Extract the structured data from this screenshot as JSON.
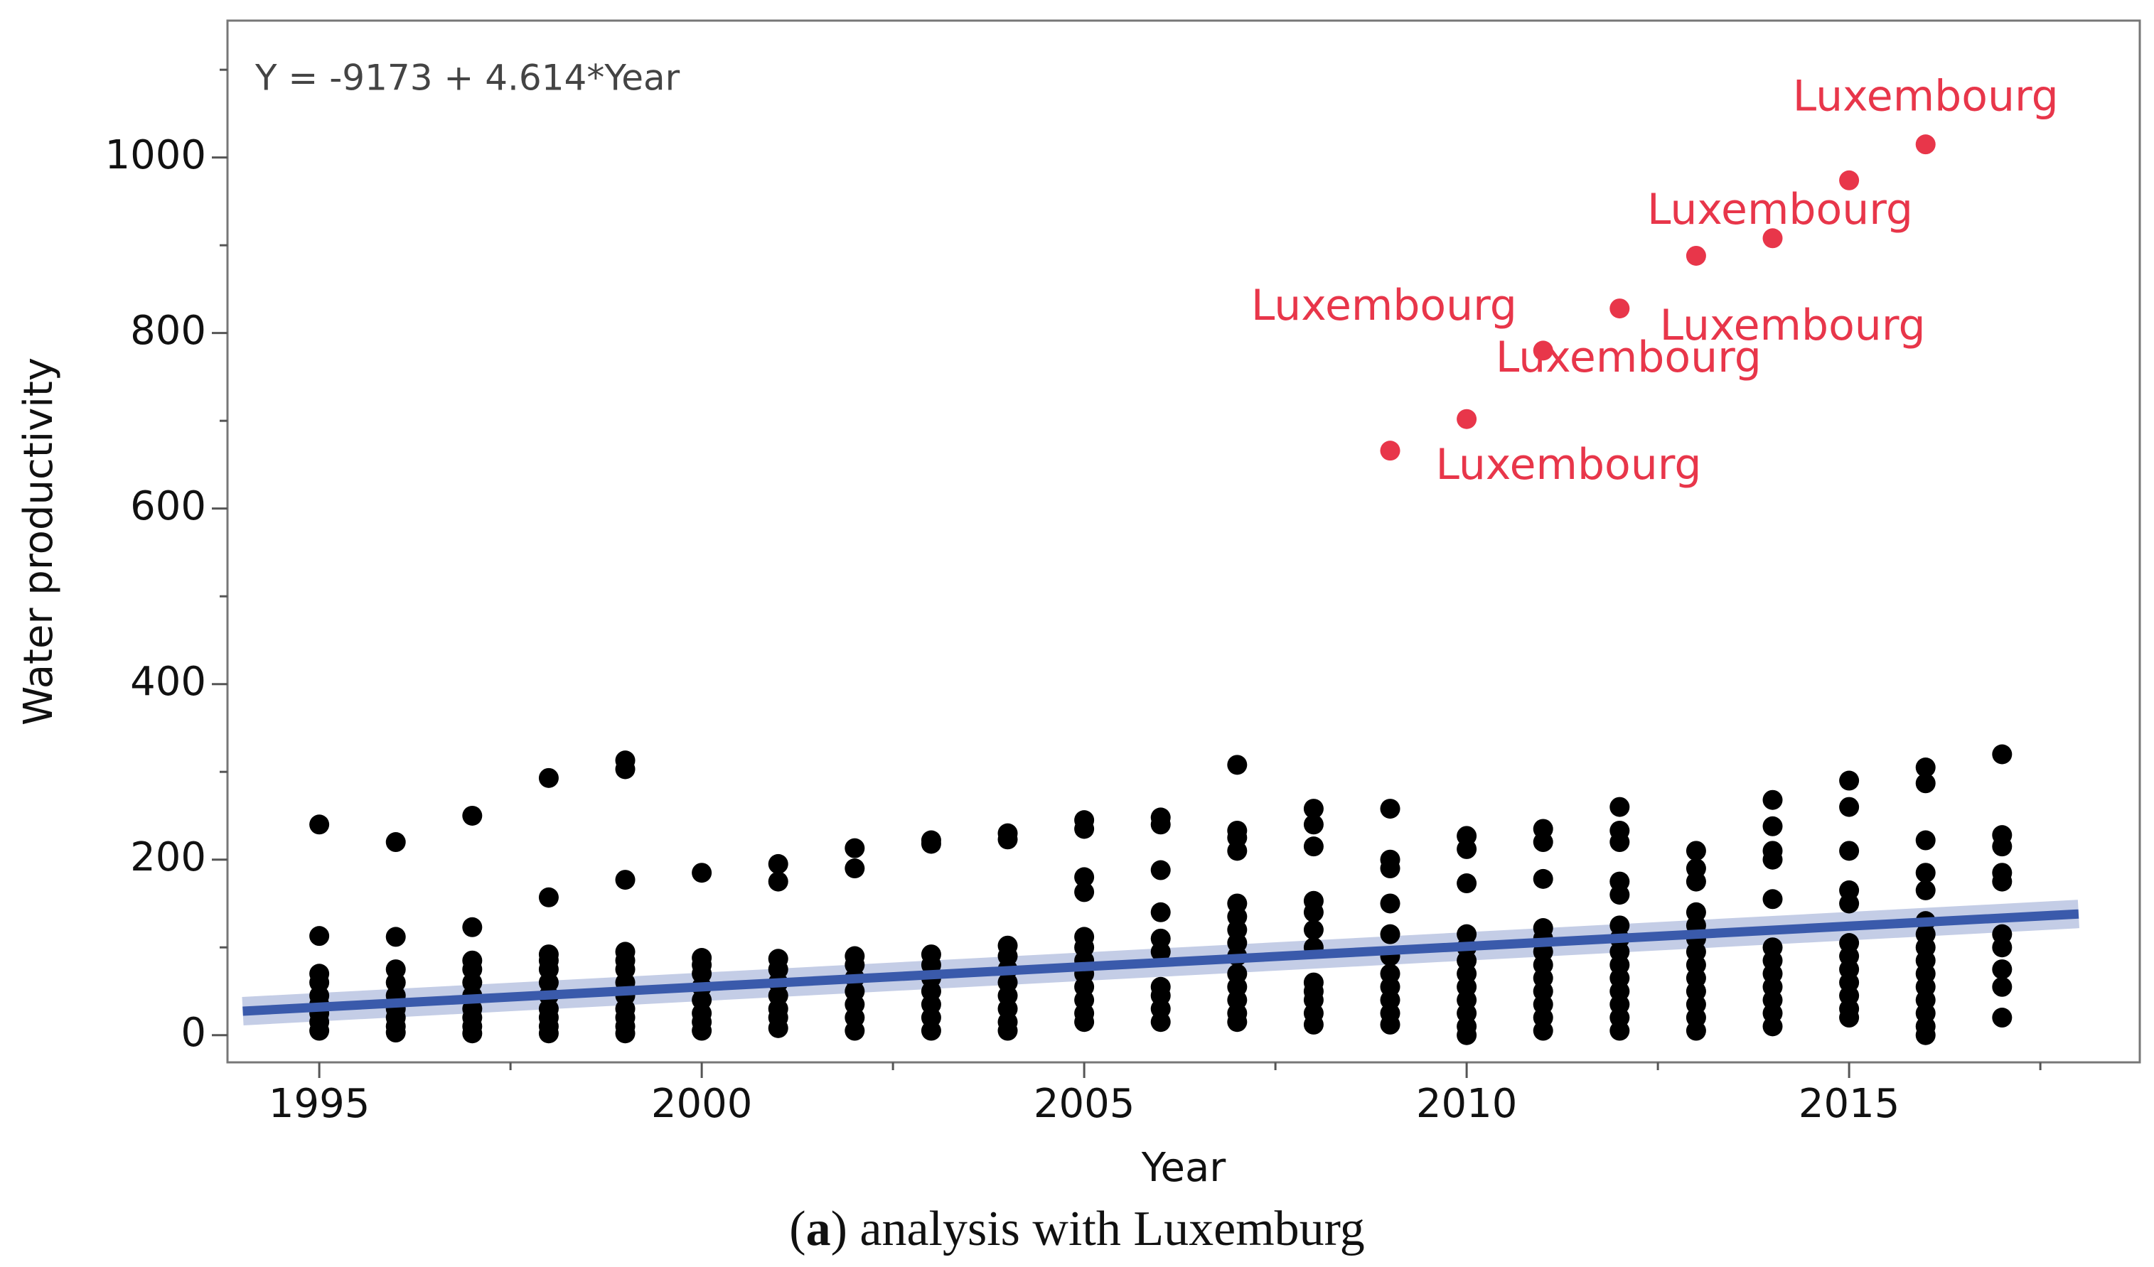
{
  "chart_data": {
    "type": "scatter",
    "equation": "Y = -9173 + 4.614*Year",
    "fit": {
      "intercept": -9173,
      "slope": 4.614,
      "x_range": [
        1994,
        2018
      ],
      "color": "#3a5aab"
    },
    "xlabel": "Year",
    "ylabel": "Water productivity",
    "xlim": [
      1993.8,
      2018.8
    ],
    "ylim": [
      -31,
      1156
    ],
    "xticks": [
      1995,
      2000,
      2005,
      2010,
      2015
    ],
    "xminorticks": [
      1997.5,
      2002.5,
      2007.5,
      2012.5,
      2017.5
    ],
    "yticks": [
      0,
      200,
      400,
      600,
      800,
      1000
    ],
    "yminorticks": [
      100,
      300,
      500,
      700,
      900,
      1100
    ],
    "series": [
      {
        "color": "#000000",
        "x": [
          1995,
          1995,
          1995,
          1995,
          1995,
          1995,
          1995,
          1995,
          1995,
          1996,
          1996,
          1996,
          1996,
          1996,
          1996,
          1996,
          1996,
          1996,
          1997,
          1997,
          1997,
          1997,
          1997,
          1997,
          1997,
          1997,
          1997,
          1997,
          1998,
          1998,
          1998,
          1998,
          1998,
          1998,
          1998,
          1998,
          1998,
          1998,
          1998,
          1999,
          1999,
          1999,
          1999,
          1999,
          1999,
          1999,
          1999,
          1999,
          1999,
          1999,
          1999,
          2000,
          2000,
          2000,
          2000,
          2000,
          2000,
          2000,
          2000,
          2000,
          2001,
          2001,
          2001,
          2001,
          2001,
          2001,
          2001,
          2001,
          2001,
          2002,
          2002,
          2002,
          2002,
          2002,
          2002,
          2002,
          2002,
          2002,
          2003,
          2003,
          2003,
          2003,
          2003,
          2003,
          2003,
          2003,
          2003,
          2004,
          2004,
          2004,
          2004,
          2004,
          2004,
          2004,
          2004,
          2004,
          2004,
          2005,
          2005,
          2005,
          2005,
          2005,
          2005,
          2005,
          2005,
          2005,
          2005,
          2005,
          2005,
          2006,
          2006,
          2006,
          2006,
          2006,
          2006,
          2006,
          2006,
          2006,
          2006,
          2007,
          2007,
          2007,
          2007,
          2007,
          2007,
          2007,
          2007,
          2007,
          2007,
          2007,
          2007,
          2007,
          2007,
          2008,
          2008,
          2008,
          2008,
          2008,
          2008,
          2008,
          2008,
          2008,
          2008,
          2008,
          2008,
          2009,
          2009,
          2009,
          2009,
          2009,
          2009,
          2009,
          2009,
          2009,
          2009,
          2009,
          2010,
          2010,
          2010,
          2010,
          2010,
          2010,
          2010,
          2010,
          2010,
          2010,
          2010,
          2010,
          2011,
          2011,
          2011,
          2011,
          2011,
          2011,
          2011,
          2011,
          2011,
          2011,
          2011,
          2011,
          2012,
          2012,
          2012,
          2012,
          2012,
          2012,
          2012,
          2012,
          2012,
          2012,
          2012,
          2012,
          2012,
          2012,
          2013,
          2013,
          2013,
          2013,
          2013,
          2013,
          2013,
          2013,
          2013,
          2013,
          2013,
          2013,
          2013,
          2014,
          2014,
          2014,
          2014,
          2014,
          2014,
          2014,
          2014,
          2014,
          2014,
          2014,
          2014,
          2015,
          2015,
          2015,
          2015,
          2015,
          2015,
          2015,
          2015,
          2015,
          2015,
          2015,
          2015,
          2016,
          2016,
          2016,
          2016,
          2016,
          2016,
          2016,
          2016,
          2016,
          2016,
          2016,
          2016,
          2016,
          2016,
          2016,
          2017,
          2017,
          2017,
          2017,
          2017,
          2017,
          2017,
          2017,
          2017,
          2017
        ],
        "values": [
          240,
          113,
          70,
          60,
          45,
          35,
          25,
          15,
          5,
          220,
          112,
          75,
          60,
          45,
          30,
          20,
          10,
          3,
          250,
          123,
          85,
          75,
          60,
          45,
          30,
          20,
          10,
          2,
          293,
          157,
          92,
          85,
          75,
          60,
          45,
          30,
          20,
          10,
          2,
          313,
          303,
          177,
          95,
          85,
          75,
          60,
          45,
          30,
          20,
          10,
          2,
          185,
          88,
          80,
          70,
          55,
          40,
          25,
          15,
          5,
          195,
          175,
          87,
          75,
          60,
          45,
          30,
          20,
          8,
          213,
          190,
          90,
          80,
          65,
          50,
          35,
          20,
          5,
          222,
          218,
          92,
          80,
          65,
          50,
          35,
          20,
          5,
          230,
          223,
          102,
          90,
          75,
          60,
          45,
          30,
          15,
          5,
          245,
          235,
          180,
          163,
          112,
          100,
          85,
          70,
          55,
          40,
          25,
          15,
          248,
          240,
          188,
          140,
          110,
          95,
          55,
          45,
          30,
          15,
          308,
          233,
          225,
          210,
          150,
          135,
          120,
          105,
          90,
          70,
          55,
          40,
          25,
          15,
          258,
          240,
          215,
          153,
          140,
          120,
          100,
          60,
          50,
          40,
          25,
          12,
          258,
          200,
          190,
          150,
          115,
          90,
          70,
          55,
          40,
          25,
          12,
          227,
          212,
          173,
          115,
          100,
          85,
          70,
          55,
          40,
          25,
          10,
          0,
          235,
          220,
          178,
          122,
          110,
          95,
          80,
          65,
          50,
          35,
          20,
          5,
          260,
          233,
          220,
          175,
          160,
          125,
          110,
          95,
          80,
          65,
          50,
          35,
          20,
          5,
          210,
          190,
          175,
          140,
          125,
          110,
          95,
          80,
          65,
          50,
          35,
          20,
          5,
          268,
          238,
          210,
          200,
          155,
          100,
          85,
          70,
          55,
          40,
          25,
          10,
          290,
          260,
          210,
          165,
          150,
          105,
          90,
          75,
          60,
          45,
          30,
          20,
          305,
          287,
          222,
          185,
          165,
          130,
          115,
          100,
          85,
          70,
          55,
          40,
          25,
          10,
          0,
          320,
          228,
          215,
          185,
          175,
          115,
          100,
          75,
          55,
          20
        ]
      },
      {
        "color": "#e8364a",
        "x": [
          2009,
          2010,
          2011,
          2012,
          2013,
          2014,
          2015,
          2016
        ],
        "values": [
          666,
          702,
          780,
          828,
          888,
          908,
          974,
          1015
        ],
        "point_labels": [
          "Luxembourg",
          "Luxembourg",
          "Luxembourg",
          "Luxembourg",
          null,
          "Luxembourg",
          null,
          "Luxembourg"
        ]
      }
    ]
  },
  "caption": [
    "(",
    "a",
    ") analysis with Luxemburg"
  ]
}
